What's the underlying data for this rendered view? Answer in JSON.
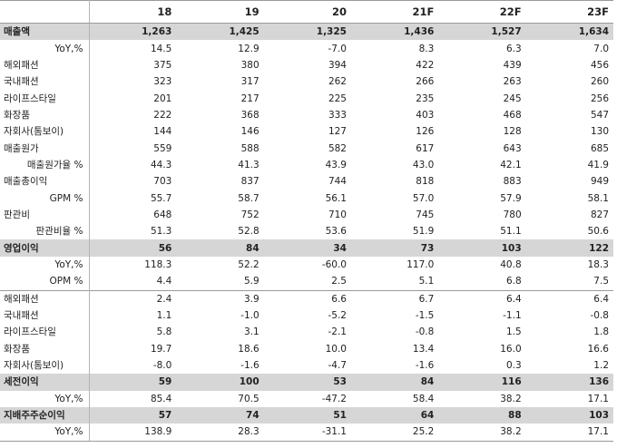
{
  "table": {
    "headers": [
      "",
      "18",
      "19",
      "20",
      "21F",
      "22F",
      "23F"
    ],
    "rows": [
      {
        "label": "매출액",
        "style": "hl",
        "values": [
          "1,263",
          "1,425",
          "1,325",
          "1,436",
          "1,527",
          "1,634"
        ]
      },
      {
        "label": "YoY,%",
        "style": "subr",
        "values": [
          "14.5",
          "12.9",
          "-7.0",
          "8.3",
          "6.3",
          "7.0"
        ]
      },
      {
        "label": "해외패션",
        "style": "",
        "values": [
          "375",
          "380",
          "394",
          "422",
          "439",
          "456"
        ]
      },
      {
        "label": "국내패션",
        "style": "",
        "values": [
          "323",
          "317",
          "262",
          "266",
          "263",
          "260"
        ]
      },
      {
        "label": "라이프스타일",
        "style": "",
        "values": [
          "201",
          "217",
          "225",
          "235",
          "245",
          "256"
        ]
      },
      {
        "label": "화장품",
        "style": "",
        "values": [
          "222",
          "368",
          "333",
          "403",
          "468",
          "547"
        ]
      },
      {
        "label": "자회사(톰보이)",
        "style": "",
        "values": [
          "144",
          "146",
          "127",
          "126",
          "128",
          "130"
        ]
      },
      {
        "label": "매출원가",
        "style": "",
        "values": [
          "559",
          "588",
          "582",
          "617",
          "643",
          "685"
        ]
      },
      {
        "label": "매출원가율 %",
        "style": "subr",
        "values": [
          "44.3",
          "41.3",
          "43.9",
          "43.0",
          "42.1",
          "41.9"
        ]
      },
      {
        "label": "매출총이익",
        "style": "",
        "values": [
          "703",
          "837",
          "744",
          "818",
          "883",
          "949"
        ]
      },
      {
        "label": "GPM %",
        "style": "subr",
        "values": [
          "55.7",
          "58.7",
          "56.1",
          "57.0",
          "57.9",
          "58.1"
        ]
      },
      {
        "label": "판관비",
        "style": "",
        "values": [
          "648",
          "752",
          "710",
          "745",
          "780",
          "827"
        ]
      },
      {
        "label": "판관비율 %",
        "style": "subr",
        "values": [
          "51.3",
          "52.8",
          "53.6",
          "51.9",
          "51.1",
          "50.6"
        ]
      },
      {
        "label": "영업이익",
        "style": "hl",
        "values": [
          "56",
          "84",
          "34",
          "73",
          "103",
          "122"
        ]
      },
      {
        "label": "YoY,%",
        "style": "subr",
        "values": [
          "118.3",
          "52.2",
          "-60.0",
          "117.0",
          "40.8",
          "18.3"
        ]
      },
      {
        "label": "OPM %",
        "style": "subr",
        "values": [
          "4.4",
          "5.9",
          "2.5",
          "5.1",
          "6.8",
          "7.5"
        ]
      },
      {
        "label": "해외패션",
        "style": "sep",
        "values": [
          "2.4",
          "3.9",
          "6.6",
          "6.7",
          "6.4",
          "6.4"
        ]
      },
      {
        "label": "국내패션",
        "style": "",
        "values": [
          "1.1",
          "-1.0",
          "-5.2",
          "-1.5",
          "-1.1",
          "-0.8"
        ]
      },
      {
        "label": "라이프스타일",
        "style": "",
        "values": [
          "5.8",
          "3.1",
          "-2.1",
          "-0.8",
          "1.5",
          "1.8"
        ]
      },
      {
        "label": "화장품",
        "style": "",
        "values": [
          "19.7",
          "18.6",
          "10.0",
          "13.4",
          "16.0",
          "16.6"
        ]
      },
      {
        "label": "자회사(톰보이)",
        "style": "",
        "values": [
          "-8.0",
          "-1.6",
          "-4.7",
          "-1.6",
          "0.3",
          "1.2"
        ]
      },
      {
        "label": "세전이익",
        "style": "hl",
        "values": [
          "59",
          "100",
          "53",
          "84",
          "116",
          "136"
        ]
      },
      {
        "label": "YoY,%",
        "style": "subr",
        "values": [
          "85.4",
          "70.5",
          "-47.2",
          "58.4",
          "38.2",
          "17.1"
        ]
      },
      {
        "label": "지배주주순이익",
        "style": "hl",
        "values": [
          "57",
          "74",
          "51",
          "64",
          "88",
          "103"
        ]
      },
      {
        "label": "YoY,%",
        "style": "subr last",
        "values": [
          "138.9",
          "28.3",
          "-31.1",
          "25.2",
          "38.2",
          "17.1"
        ]
      }
    ]
  }
}
